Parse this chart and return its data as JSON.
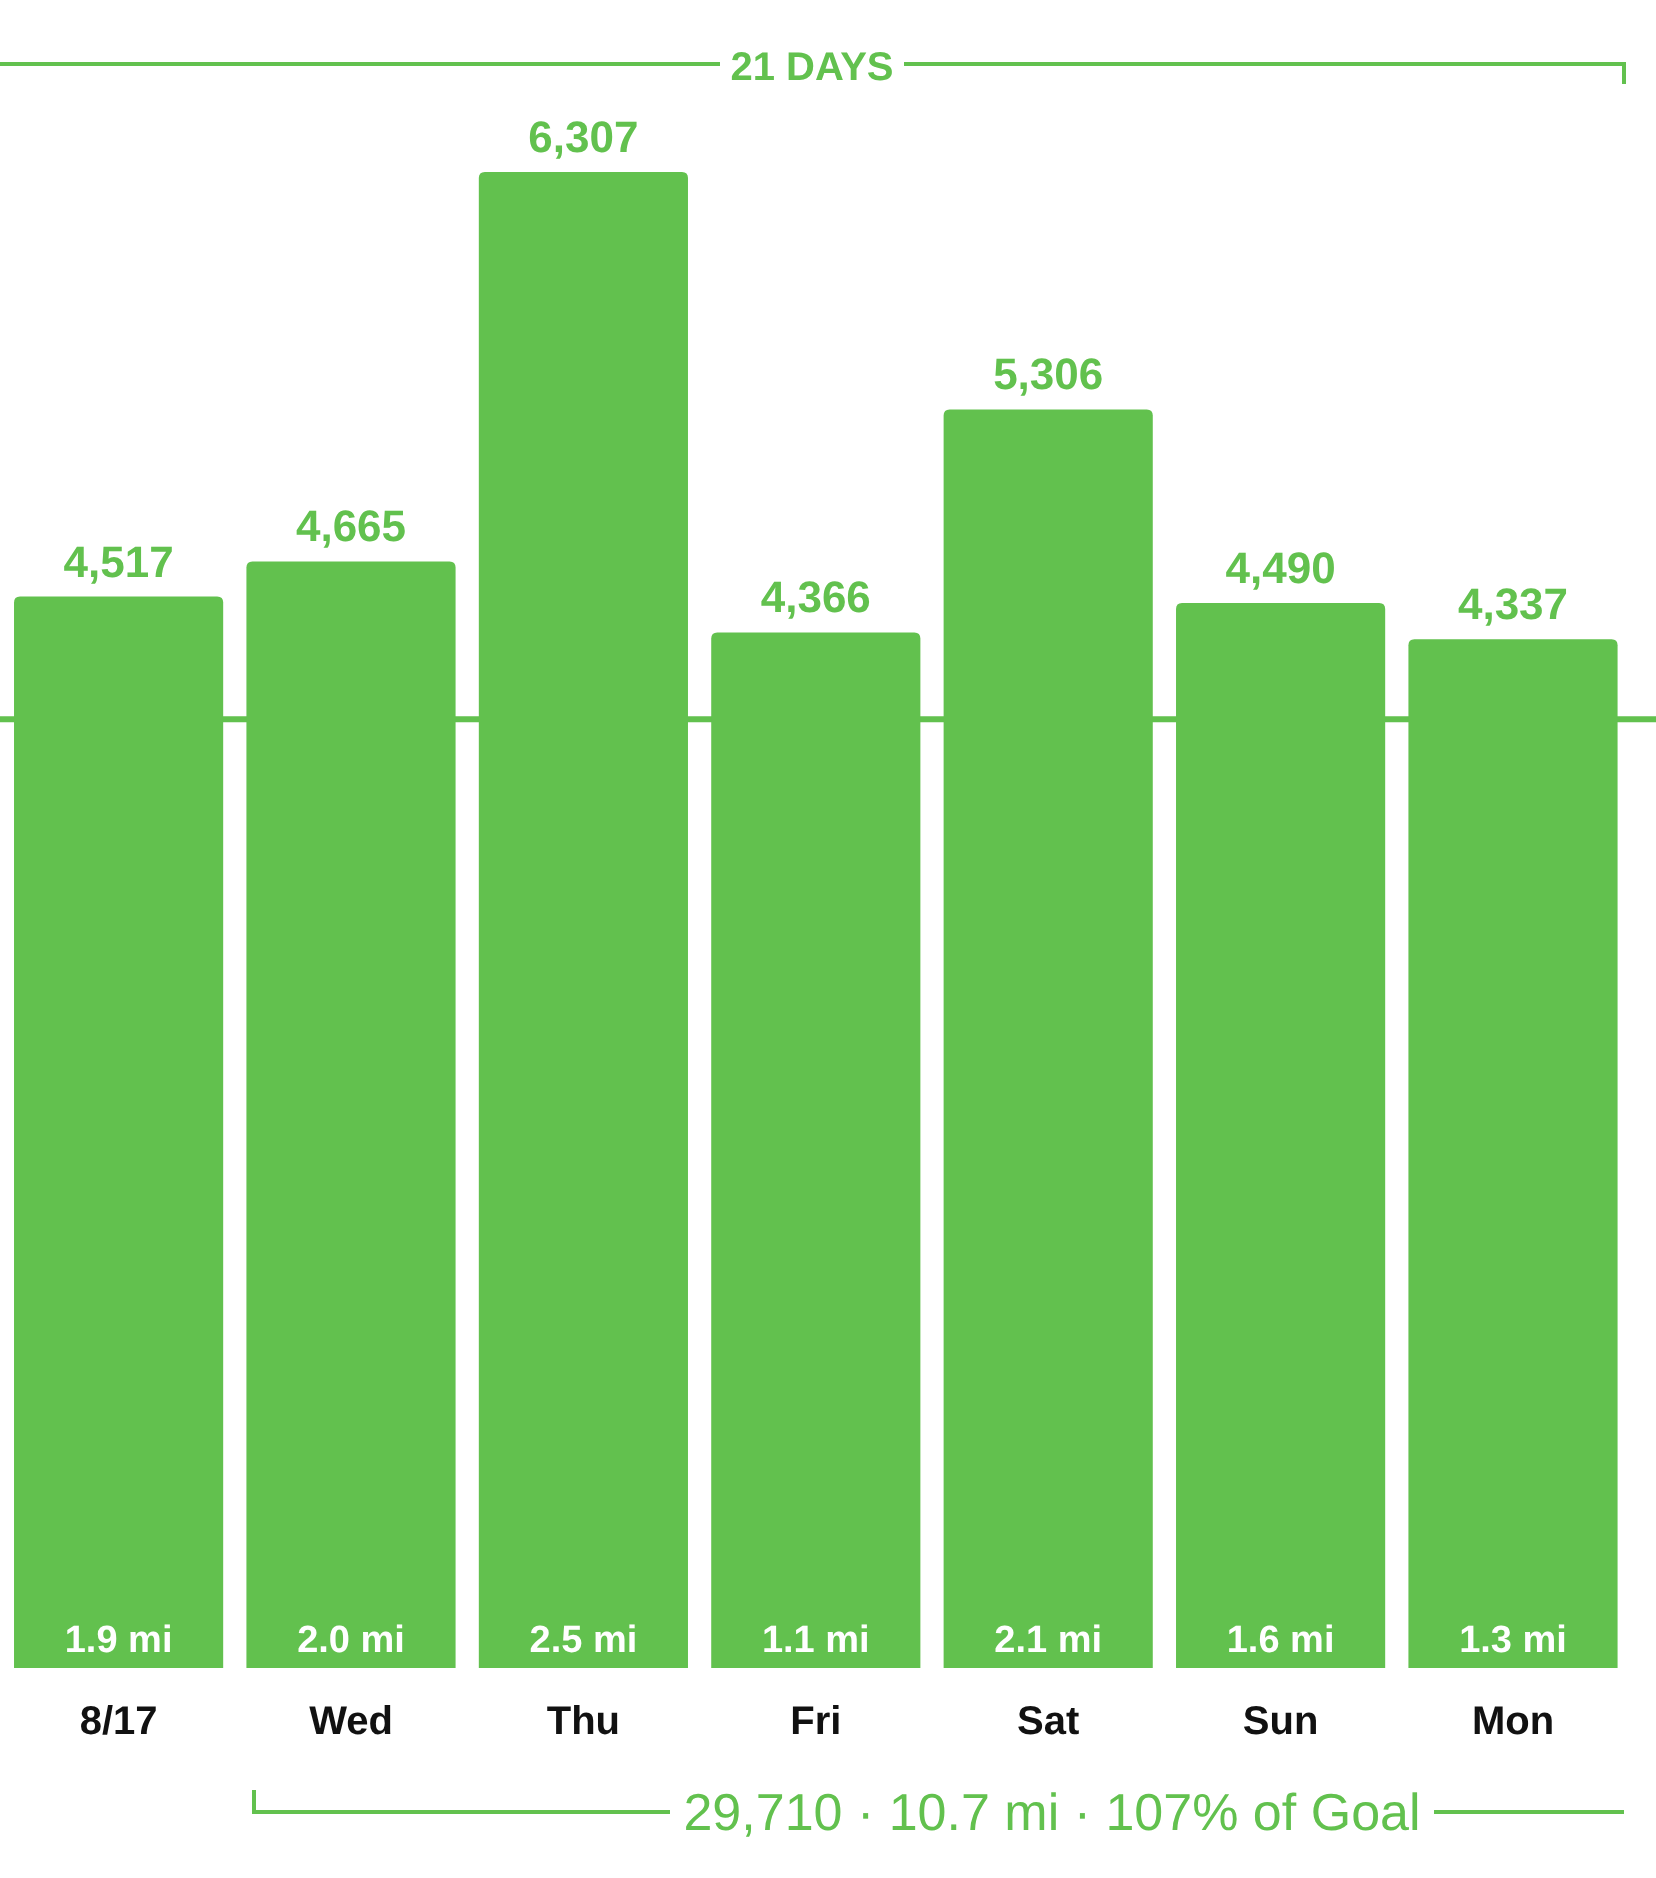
{
  "chart_data": {
    "type": "bar",
    "categories": [
      "8/17",
      "Wed",
      "Thu",
      "Fri",
      "Sat",
      "Sun",
      "Mon"
    ],
    "values": [
      4517,
      4665,
      6307,
      4366,
      5306,
      4490,
      4337
    ],
    "value_labels": [
      "4,517",
      "4,665",
      "6,307",
      "4,366",
      "5,306",
      "4,490",
      "4,337"
    ],
    "color": "#62c14e",
    "ref_lines": [
      {
        "axis": "y",
        "value": 4000,
        "color": "#62c14e"
      }
    ],
    "annotations": [
      "21 DAYS",
      "29,710 · 10.7 mi · 107% of Goal",
      {
        "text": "1.9 mi",
        "x": "8/17",
        "y": 0
      },
      {
        "text": "2.0 mi",
        "x": "Wed",
        "y": 0
      },
      {
        "text": "2.5 mi",
        "x": "Thu",
        "y": 0
      },
      {
        "text": "1.1 mi",
        "x": "Fri",
        "y": 0
      },
      {
        "text": "2.1 mi",
        "x": "Sat",
        "y": 0
      },
      {
        "text": "1.6 mi",
        "x": "Sun",
        "y": 0
      },
      {
        "text": "1.3 mi",
        "x": "Mon",
        "y": 0
      }
    ]
  }
}
